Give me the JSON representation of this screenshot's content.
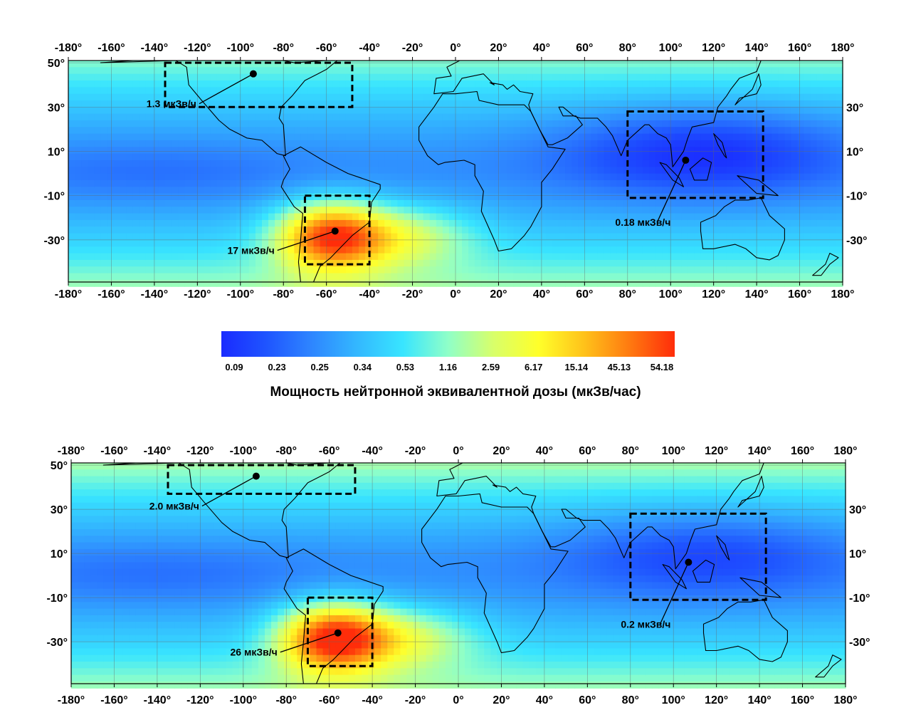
{
  "colorbar": {
    "title": "Мощность нейтронной эквивалентной дозы (мкЗв/час)",
    "labels": [
      "0.09",
      "0.23",
      "0.25",
      "0.34",
      "0.53",
      "1.16",
      "2.59",
      "6.17",
      "15.14",
      "45.13",
      "54.18"
    ],
    "colors": [
      "#1a2bff",
      "#1f55ff",
      "#2e86ff",
      "#33b8ff",
      "#38e5ff",
      "#8fffc8",
      "#d8ff6a",
      "#ffff2a",
      "#ffc21a",
      "#ff7a10",
      "#ff2d0a"
    ]
  },
  "lon_ticks": [
    "-180°",
    "-160°",
    "-140°",
    "-120°",
    "-100°",
    "-80°",
    "-60°",
    "-40°",
    "-20°",
    "0°",
    "20°",
    "40°",
    "60°",
    "80°",
    "100°",
    "120°",
    "140°",
    "160°",
    "180°"
  ],
  "lat_ticks_left": [
    "50°",
    "30°",
    "10°",
    "-10°",
    "-30°"
  ],
  "lat_ticks_right": [
    "30°",
    "10°",
    "-10°",
    "-30°"
  ],
  "panels": {
    "top": {
      "regions": [
        {
          "name": "north-america",
          "lon": [
            -135,
            -48
          ],
          "lat": [
            30,
            50
          ],
          "point": [
            -94,
            45
          ],
          "label": "1.3 мкЗв/ч"
        },
        {
          "name": "south-atlantic-anomaly",
          "lon": [
            -70,
            -40
          ],
          "lat": [
            -41,
            -10
          ],
          "point": [
            -56,
            -26
          ],
          "label": "17 мкЗв/ч"
        },
        {
          "name": "southeast-asia",
          "lon": [
            80,
            143
          ],
          "lat": [
            -11,
            28
          ],
          "point": [
            107,
            6
          ],
          "label": "0.18 мкЗв/ч"
        }
      ]
    },
    "bottom": {
      "regions": [
        {
          "name": "north-america",
          "lon": [
            -135,
            -48
          ],
          "lat": [
            37,
            50
          ],
          "point": [
            -94,
            45
          ],
          "label": "2.0 мкЗв/ч"
        },
        {
          "name": "south-atlantic-anomaly",
          "lon": [
            -70,
            -40
          ],
          "lat": [
            -41,
            -10
          ],
          "point": [
            -56,
            -26
          ],
          "label": "26 мкЗв/ч"
        },
        {
          "name": "southeast-asia",
          "lon": [
            80,
            143
          ],
          "lat": [
            -11,
            28
          ],
          "point": [
            107,
            6
          ],
          "label": "0.2 мкЗв/ч"
        }
      ]
    }
  }
}
